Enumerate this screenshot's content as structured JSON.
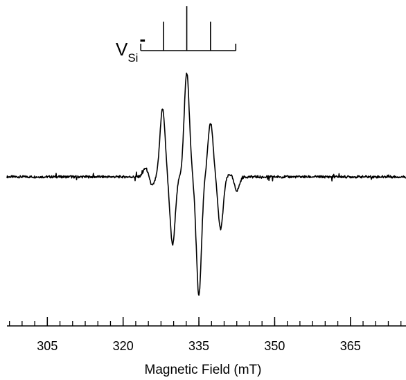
{
  "chart_data": {
    "type": "line",
    "xlabel": "Magnetic Field (mT)",
    "ylabel": "",
    "xlim": [
      297,
      376
    ],
    "x_ticks": [
      305,
      320,
      335,
      350,
      365
    ],
    "x_tick_labels": [
      "305",
      "320",
      "335",
      "350",
      "365"
    ],
    "minor_tick_step": 2.5,
    "grid": false,
    "legend": "none",
    "line_color": "#000000",
    "spectrum_peaks": [
      {
        "x": 324.5,
        "y": 0.13
      },
      {
        "x": 325.7,
        "y": -0.13
      },
      {
        "x": 327.8,
        "y": 0.98
      },
      {
        "x": 329.8,
        "y": -0.98
      },
      {
        "x": 332.6,
        "y": 1.5
      },
      {
        "x": 335.0,
        "y": -1.7
      },
      {
        "x": 337.3,
        "y": 0.78
      },
      {
        "x": 339.3,
        "y": -0.75
      },
      {
        "x": 341.3,
        "y": 0.04
      },
      {
        "x": 342.5,
        "y": -0.2
      }
    ],
    "annotation": {
      "label_main": "V",
      "label_sub": "Si",
      "label_sup": "-",
      "stick_positions": [
        328.0,
        332.6,
        337.3
      ],
      "stick_relative_heights": [
        0.65,
        1.0,
        0.65
      ],
      "bracket_range": [
        323.5,
        342.3
      ]
    }
  }
}
